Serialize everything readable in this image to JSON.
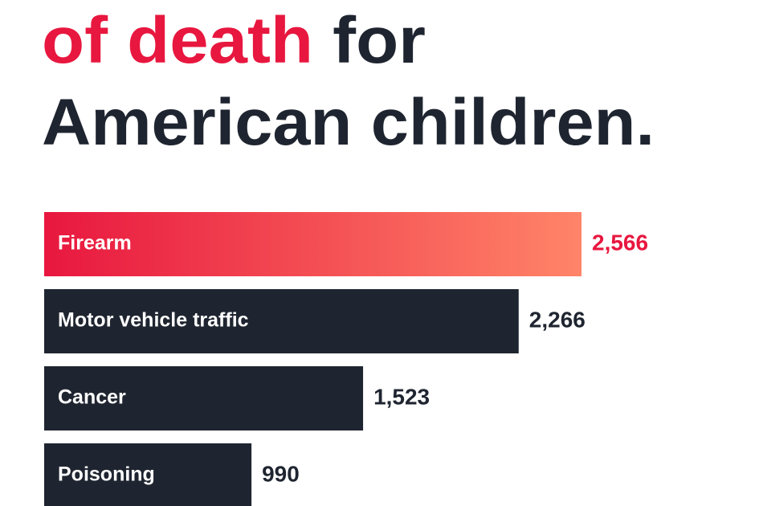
{
  "chart_data": {
    "type": "bar",
    "title_parts": [
      [
        "of death",
        "for"
      ],
      [
        "American children."
      ]
    ],
    "title_colors": [
      "#e8173f",
      "#1f2530"
    ],
    "categories": [
      "Firearm",
      "Motor vehicle traffic",
      "Cancer",
      "Poisoning"
    ],
    "values": [
      2566,
      2266,
      1523,
      990
    ],
    "value_labels": [
      "2,566",
      "2,266",
      "1,523",
      "990"
    ],
    "colors": [
      [
        "#e8173f",
        "#ff8468"
      ],
      "#1f2530",
      "#1f2530",
      "#1f2530"
    ]
  }
}
